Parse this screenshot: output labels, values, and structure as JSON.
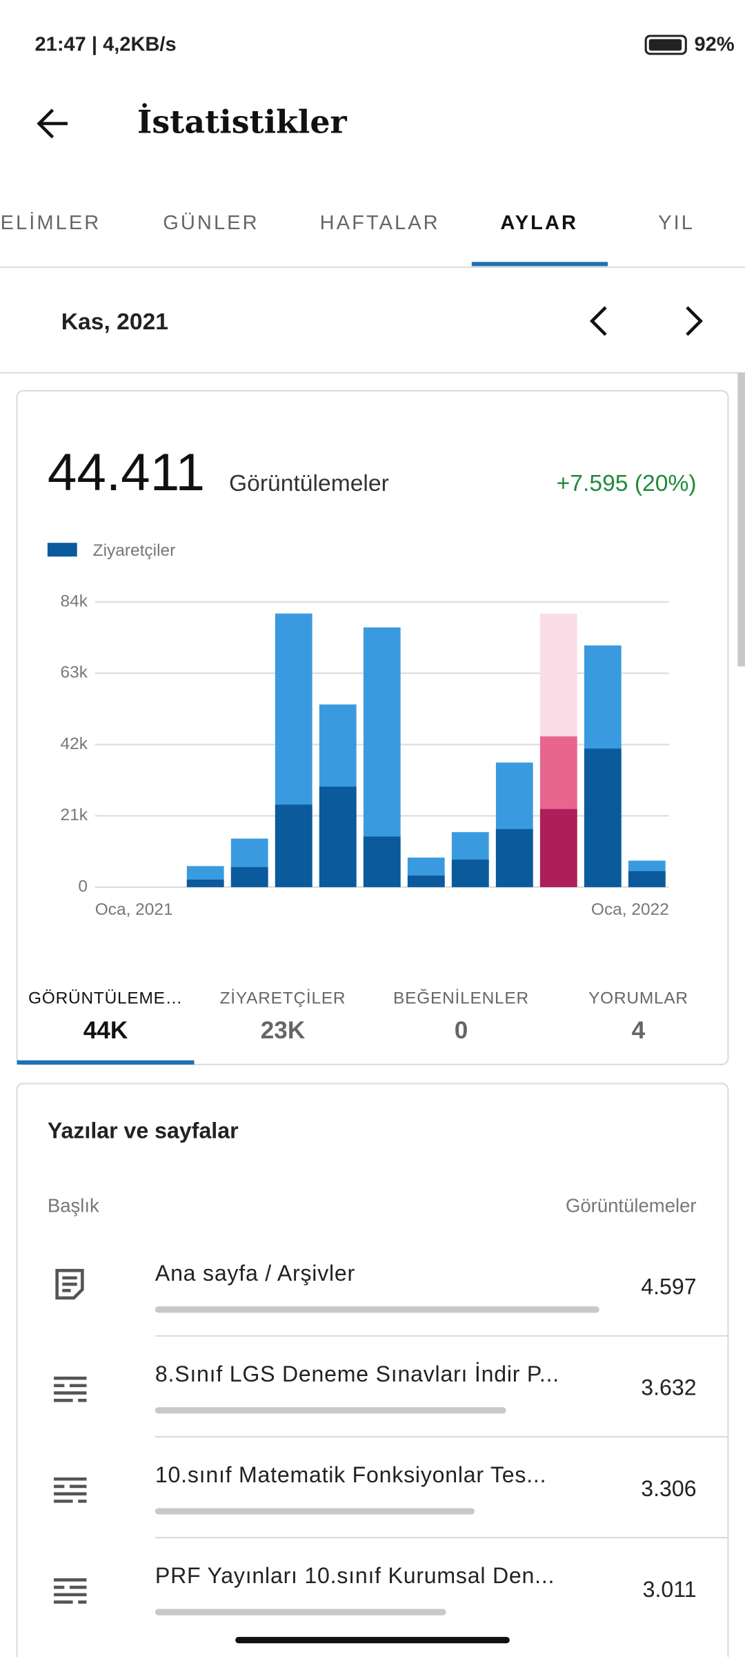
{
  "status_bar": {
    "time": "21:47 | 4,2KB/s",
    "battery": "92%"
  },
  "header": {
    "title": "İstatistikler"
  },
  "tabs": {
    "items": [
      "ELİMLER",
      "GÜNLER",
      "HAFTALAR",
      "AYLAR",
      "YIL"
    ],
    "selected": 3
  },
  "period": {
    "label": "Kas, 2021"
  },
  "summary": {
    "total": {
      "value": 44411,
      "label": "44.411"
    },
    "label": "Görüntülemeler",
    "change": "+7.595 (20%)"
  },
  "chart_data": {
    "type": "bar",
    "categories": [
      "Oca, 2021",
      null,
      null,
      null,
      null,
      null,
      null,
      null,
      null,
      null,
      null,
      null,
      "Oca, 2022"
    ],
    "series": [
      {
        "color": "#3a9ae0",
        "highlight_color": "#e8658f",
        "values": [
          null,
          null,
          6200,
          14300,
          80600,
          53800,
          76500,
          8700,
          16200,
          36700,
          44411,
          71200,
          7800
        ]
      },
      {
        "name": "Ziyaretçiler",
        "color": "#0b5a9c",
        "highlight_color": "#ad1f5b",
        "values": [
          null,
          null,
          2200,
          5900,
          24300,
          29600,
          14900,
          3400,
          8100,
          17100,
          23000,
          40800,
          4700
        ]
      }
    ],
    "highlight_index": 10,
    "highlight_background": "#fadde6",
    "ylim": [
      0,
      84000
    ],
    "yticks": [
      0,
      {
        "value": 21000,
        "label": "21k"
      },
      {
        "value": 42000,
        "label": "42k"
      },
      {
        "value": 63000,
        "label": "63k"
      },
      {
        "value": 84000,
        "label": "84k"
      }
    ],
    "grid": true,
    "legend": "top-left"
  },
  "stats": {
    "items": [
      {
        "label": "GÖRÜNTÜLEME…",
        "value": "44K"
      },
      {
        "label": "ZİYARETÇİLER",
        "value": "23K"
      },
      {
        "label": "BEĞENİLENLER",
        "value": "0"
      },
      {
        "label": "YORUMLAR",
        "value": "4"
      }
    ],
    "selected": 0
  },
  "posts": {
    "title": "Yazılar ve sayfalar",
    "column_title": "Başlık",
    "column_views": "Görüntülemeler",
    "rows": [
      {
        "icon": "page",
        "title": "Ana sayfa / Arşivler",
        "views": {
          "value": 4597,
          "label": "4.597"
        }
      },
      {
        "icon": "post",
        "title": "8.Sınıf LGS Deneme Sınavları İndir P...",
        "views": {
          "value": 3632,
          "label": "3.632"
        }
      },
      {
        "icon": "post",
        "title": "10.sınıf Matematik Fonksiyonlar Tes...",
        "views": {
          "value": 3306,
          "label": "3.306"
        }
      },
      {
        "icon": "post",
        "title": "PRF Yayınları 10.sınıf Kurumsal Den...",
        "views": {
          "value": 3011,
          "label": "3.011"
        }
      }
    ]
  }
}
